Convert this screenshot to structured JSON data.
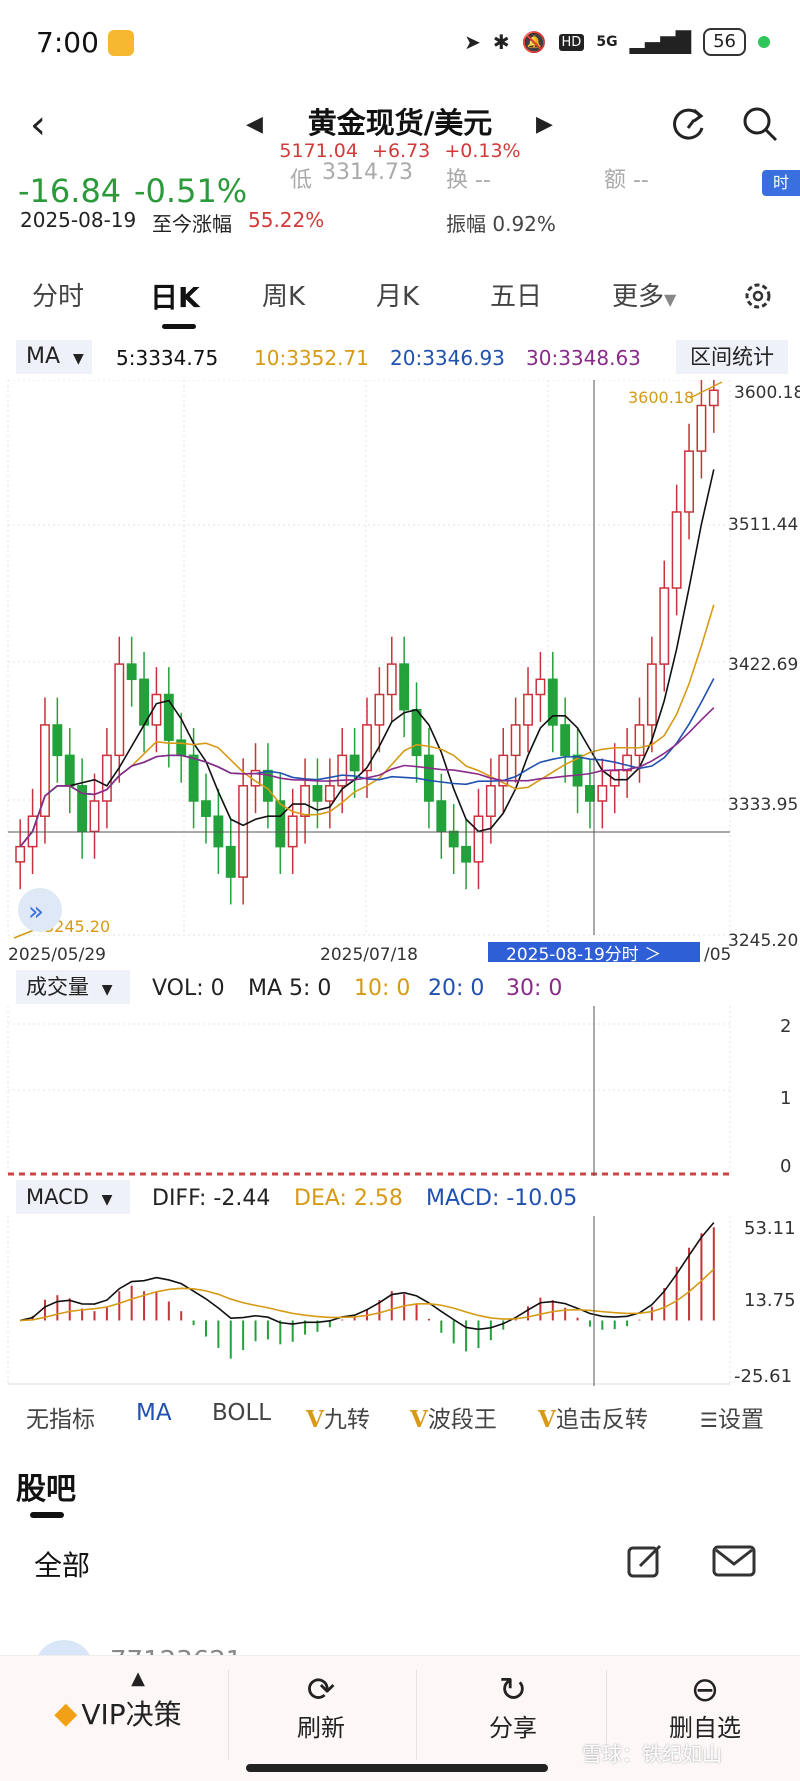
{
  "status": {
    "time": "7:00",
    "hd": "HD",
    "network": "5G",
    "battery": "56"
  },
  "header": {
    "title": "黄金现货/美元",
    "price": "5171.04",
    "change": "+6.73",
    "change_pct": "+0.13%"
  },
  "quote": {
    "change_abs": "-16.84",
    "change_pct": "-0.51%",
    "low_label": "低",
    "low_value": "3314.73",
    "hand_label": "换 --",
    "amount_label": "额 --",
    "time_badge": "时",
    "date": "2025-08-19",
    "since_label": "至今涨幅",
    "since_value": "55.22%",
    "amp_label": "振幅",
    "amp_value": "0.92%"
  },
  "tabs": [
    "分时",
    "日K",
    "周K",
    "月K",
    "五日",
    "更多"
  ],
  "ma_bar": {
    "select": "MA",
    "ma5": "5:3334.75",
    "ma10": "10:3352.71",
    "ma20": "20:3346.93",
    "ma30": "30:3348.63",
    "range_btn": "区间统计"
  },
  "main_chart": {
    "y_labels": [
      "3600.18",
      "3511.44",
      "3422.69",
      "3333.95",
      "3245.20"
    ],
    "high_marker": "3600.18",
    "low_marker": "3245.20",
    "x_labels": [
      "2025/05/29",
      "2025/07/18"
    ],
    "x_end": "/05",
    "cursor_label": "2025-08-19分时 ＞"
  },
  "volume": {
    "select": "成交量",
    "vol": "VOL: 0",
    "ma5": "MA 5: 0",
    "ma10": "10: 0",
    "ma20": "20: 0",
    "ma30": "30: 0",
    "y_labels": [
      "2",
      "1",
      "0"
    ]
  },
  "macd": {
    "select": "MACD",
    "diff": "DIFF: -2.44",
    "dea": "DEA: 2.58",
    "macd": "MACD: -10.05",
    "y_labels": [
      "53.11",
      "13.75",
      "-25.61"
    ]
  },
  "indicators": {
    "none": "无指标",
    "ma": "MA",
    "boll": "BOLL",
    "jiuzhuan": "九转",
    "boduan": "波段王",
    "zhuiji": "追击反转",
    "settings": "设置",
    "v": "V"
  },
  "forum": {
    "title": "股吧",
    "all": "全部",
    "user_name": "77123621"
  },
  "bottom_bar": {
    "vip": "VIP决策",
    "refresh": "刷新",
    "share": "分享",
    "remove": "删自选"
  },
  "watermark": "雪球：铁纪如山",
  "chart_data": {
    "type": "candlestick",
    "ylim": [
      3245.2,
      3600.18
    ],
    "x_ticks": [
      "2025/05/29",
      "2025/07/18"
    ],
    "candles_close": [
      3300,
      3320,
      3380,
      3360,
      3340,
      3310,
      3330,
      3360,
      3420,
      3410,
      3380,
      3400,
      3370,
      3360,
      3330,
      3320,
      3300,
      3280,
      3340,
      3350,
      3330,
      3300,
      3320,
      3340,
      3330,
      3340,
      3360,
      3350,
      3380,
      3400,
      3420,
      3390,
      3360,
      3330,
      3310,
      3300,
      3290,
      3320,
      3340,
      3360,
      3380,
      3400,
      3410,
      3380,
      3360,
      3340,
      3330,
      3340,
      3350,
      3360,
      3380,
      3420,
      3470,
      3520,
      3560,
      3590,
      3600
    ],
    "ma_lines": [
      "MA5",
      "MA10",
      "MA20",
      "MA30"
    ]
  }
}
